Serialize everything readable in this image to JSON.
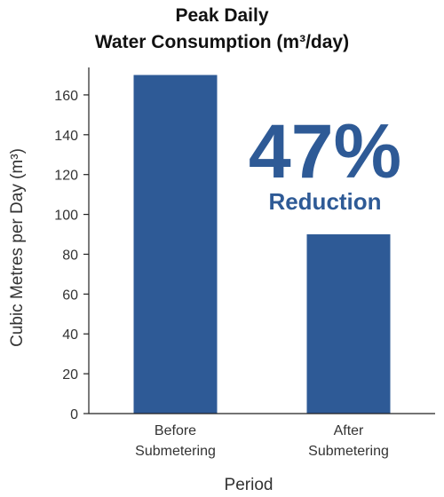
{
  "chart_data": {
    "type": "bar",
    "title_lines": [
      "Peak Daily",
      "Water Consumption (m³/day)"
    ],
    "title": "Peak Daily Water Consumption (m³/day)",
    "xlabel": "Period",
    "ylabel": "Cubic Metres per Day (m³)",
    "categories": [
      [
        "Before",
        "Submetering"
      ],
      [
        "After",
        "Submetering"
      ]
    ],
    "values": [
      170,
      90
    ],
    "ylim": [
      0,
      172
    ],
    "yticks": [
      0,
      20,
      40,
      60,
      80,
      100,
      120,
      140,
      160
    ],
    "grid": false,
    "bar_color": "#2e5a96",
    "annotation": {
      "big": "47%",
      "small": "Reduction",
      "color": "#2e5a96"
    }
  }
}
